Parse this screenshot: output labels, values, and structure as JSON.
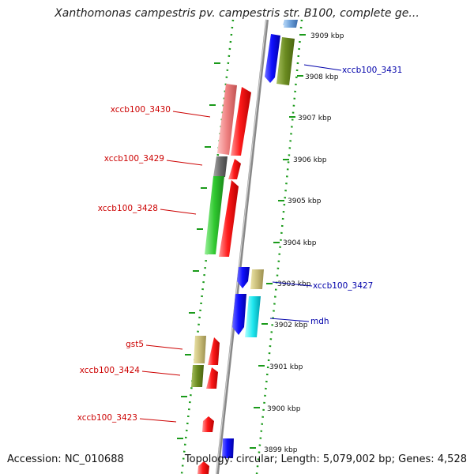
{
  "title": "Xanthomonas campestris pv. campestris str. B100, complete ge...",
  "footer": {
    "accession": "Accession: NC_010688",
    "topology": "Topology: circular; Length: 5,079,002 bp; Genes: 4,528"
  },
  "ticks": [
    "3909 kbp",
    "3908 kbp",
    "3907 kbp",
    "3906 kbp",
    "3905 kbp",
    "3904 kbp",
    "3903 kbp",
    "3902 kbp",
    "3901 kbp",
    "3900 kbp",
    "3899 kbp"
  ],
  "gene_labels": [
    {
      "name": "xccb100_3431",
      "color": "#0000aa"
    },
    {
      "name": "xccb100_3430",
      "color": "#cc0000"
    },
    {
      "name": "xccb100_3429",
      "color": "#cc0000"
    },
    {
      "name": "xccb100_3428",
      "color": "#cc0000"
    },
    {
      "name": "xccb100_3427",
      "color": "#0000aa"
    },
    {
      "name": "mdh",
      "color": "#0000aa"
    },
    {
      "name": "gst5",
      "color": "#cc0000"
    },
    {
      "name": "xccb100_3424",
      "color": "#cc0000"
    },
    {
      "name": "xccb100_3423",
      "color": "#cc0000"
    }
  ],
  "colors": {
    "backbone": "#888888",
    "dotted_ring": "#1a9a1a",
    "forward_cds": "#ff0000",
    "reverse_cds": "#0000ff",
    "label_forward": "#cc0000",
    "label_reverse": "#0000aa"
  }
}
